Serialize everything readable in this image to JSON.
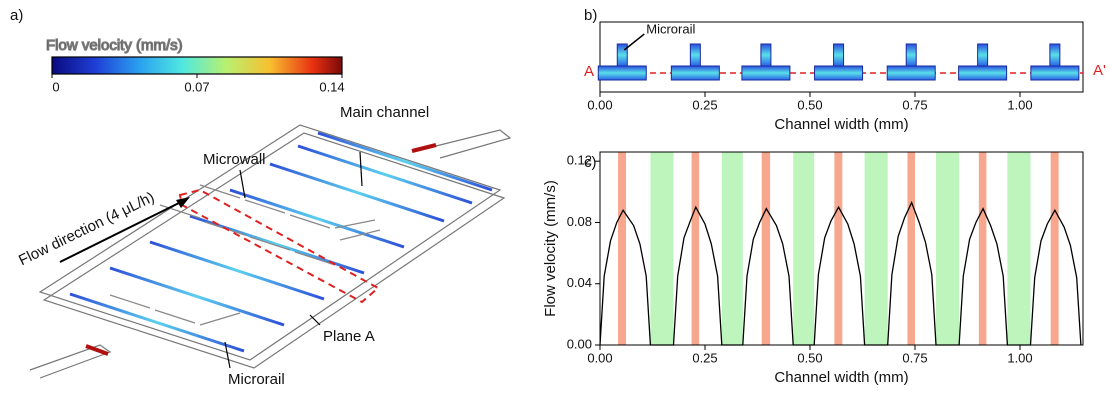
{
  "panel_labels": [
    "a)",
    "b)",
    "c)"
  ],
  "diagram": {
    "colorbar": {
      "title": "Flow velocity (mm/s)",
      "lim": [
        0,
        0.14
      ],
      "ticks": [
        0,
        0.07,
        0.14
      ]
    },
    "labels": {
      "main_channel": "Main channel",
      "microwall": "Microwall",
      "flow_direction": "Flow direction (4 μL/h)",
      "plane": "Plane A",
      "microrail": "Microrail"
    }
  },
  "chart_data": [
    {
      "type": "cross-section",
      "xlabel": "Channel width (mm)",
      "xlim": [
        0,
        1.15
      ],
      "xticks": [
        {
          "value": 0,
          "label": "0.00"
        },
        0.25,
        {
          "value": 0.5,
          "label": "0.50"
        },
        0.75,
        {
          "value": 1,
          "label": "1.00"
        }
      ],
      "annotation": "Microrail",
      "plane_start": "A",
      "plane_end": "A'",
      "rails": [
        0.053,
        0.227,
        0.395,
        0.568,
        0.741,
        0.911,
        1.083
      ]
    },
    {
      "type": "line",
      "xlabel": "Channel width (mm)",
      "ylabel": "Flow velocity (mm/s)",
      "xlim": [
        0,
        1.15
      ],
      "ylim": [
        0,
        0.126
      ],
      "xticks": [
        {
          "value": 0,
          "label": "0.00"
        },
        0.25,
        {
          "value": 0.5,
          "label": "0.50"
        },
        0.75,
        {
          "value": 1,
          "label": "1.00"
        }
      ],
      "yticks": [
        {
          "value": 0,
          "label": "0.00"
        },
        0.04,
        0.08,
        0.12
      ],
      "shaded_regions": [
        {
          "color": "#f7a78e",
          "ranges": [
            [
              0.043,
              0.062
            ],
            [
              0.218,
              0.236
            ],
            [
              0.385,
              0.405
            ],
            [
              0.558,
              0.577
            ],
            [
              0.732,
              0.75
            ],
            [
              0.902,
              0.92
            ],
            [
              1.073,
              1.092
            ]
          ]
        },
        {
          "color": "#bdf5bd",
          "ranges": [
            [
              0.12,
              0.175
            ],
            [
              0.29,
              0.34
            ],
            [
              0.46,
              0.51
            ],
            [
              0.63,
              0.685
            ],
            [
              0.8,
              0.855
            ],
            [
              0.97,
              1.025
            ]
          ]
        }
      ],
      "series": [
        {
          "color": "#000000",
          "x": [
            0,
            0.01,
            0.025,
            0.04,
            0.055,
            0.08,
            0.095,
            0.11,
            0.12,
            0.175,
            0.185,
            0.2,
            0.215,
            0.228,
            0.25,
            0.265,
            0.28,
            0.29,
            0.34,
            0.35,
            0.365,
            0.38,
            0.396,
            0.42,
            0.435,
            0.45,
            0.46,
            0.51,
            0.52,
            0.535,
            0.55,
            0.568,
            0.59,
            0.605,
            0.62,
            0.63,
            0.685,
            0.695,
            0.71,
            0.725,
            0.742,
            0.76,
            0.775,
            0.79,
            0.8,
            0.855,
            0.865,
            0.88,
            0.895,
            0.912,
            0.93,
            0.945,
            0.96,
            0.97,
            1.025,
            1.035,
            1.05,
            1.065,
            1.083,
            1.105,
            1.12,
            1.135,
            1.145
          ],
          "values": [
            0,
            0.045,
            0.068,
            0.08,
            0.088,
            0.078,
            0.066,
            0.045,
            0,
            0,
            0.045,
            0.07,
            0.081,
            0.09,
            0.079,
            0.066,
            0.045,
            0,
            0,
            0.045,
            0.069,
            0.08,
            0.089,
            0.078,
            0.066,
            0.045,
            0,
            0,
            0.046,
            0.07,
            0.081,
            0.09,
            0.079,
            0.066,
            0.045,
            0,
            0,
            0.046,
            0.071,
            0.083,
            0.093,
            0.08,
            0.067,
            0.046,
            0,
            0,
            0.045,
            0.069,
            0.08,
            0.089,
            0.078,
            0.066,
            0.045,
            0,
            0,
            0.044,
            0.068,
            0.079,
            0.088,
            0.077,
            0.065,
            0.044,
            0
          ]
        }
      ]
    }
  ]
}
